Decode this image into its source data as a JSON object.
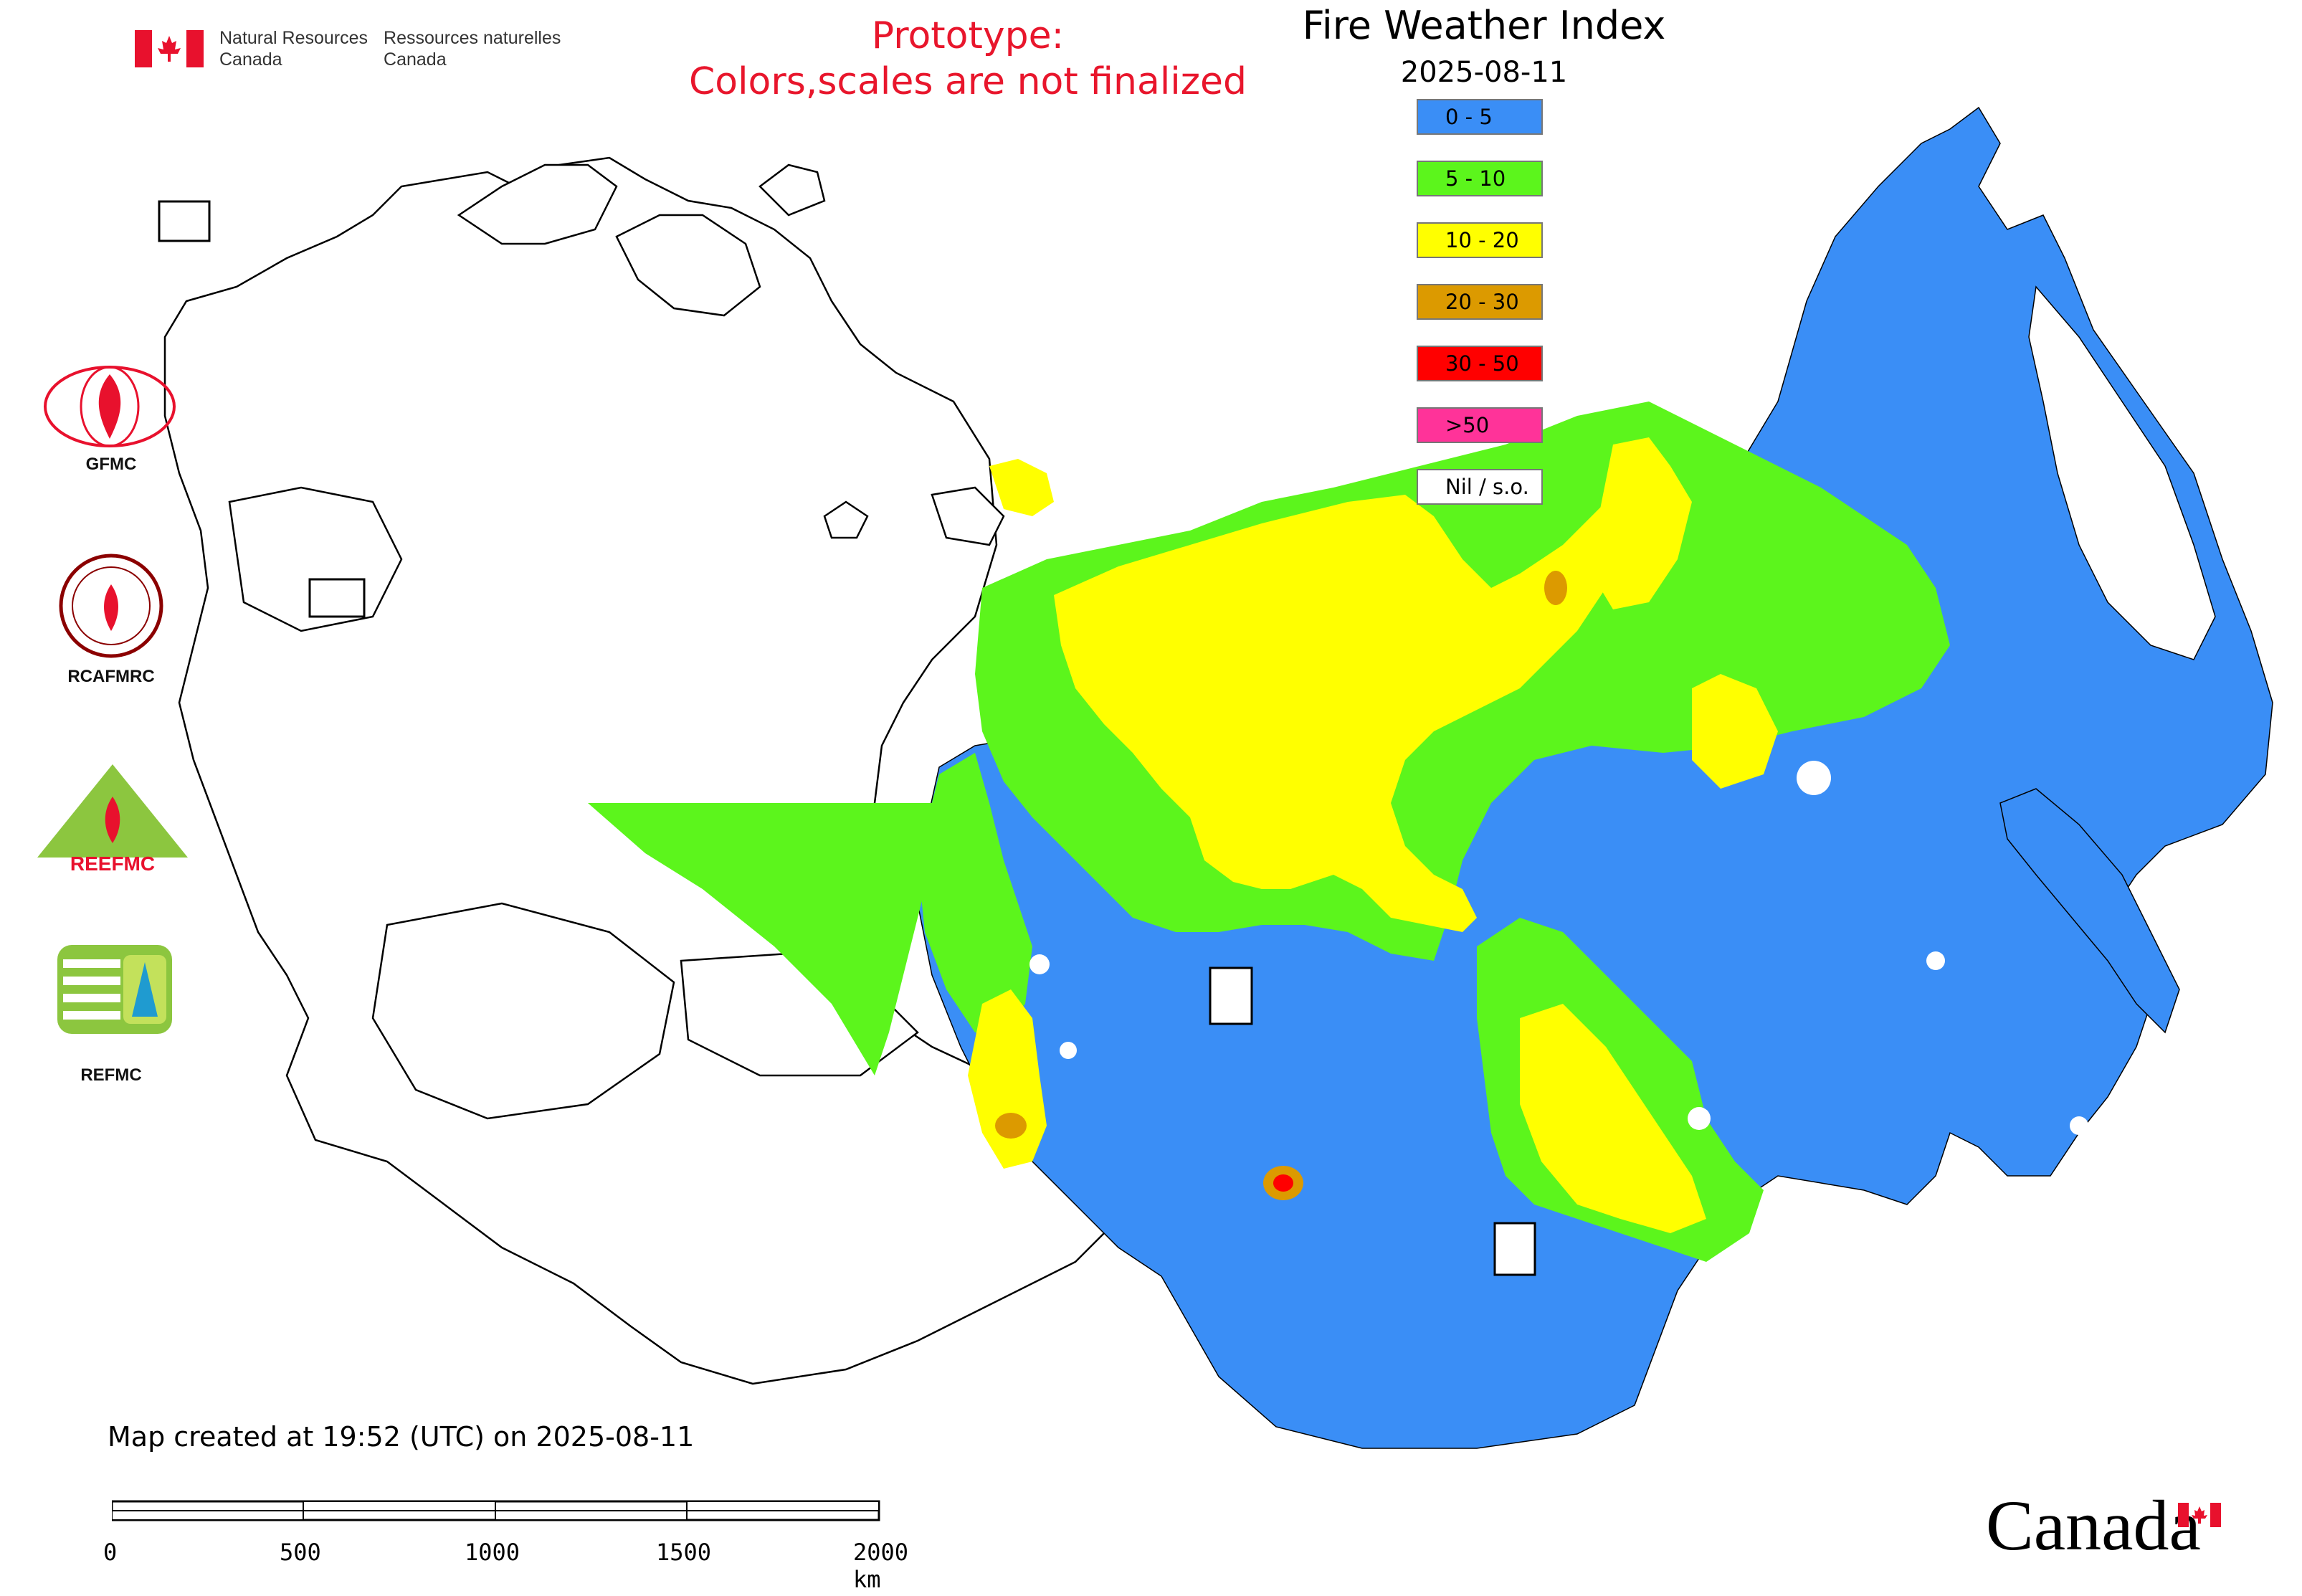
{
  "header": {
    "agency_en": [
      "Natural Resources",
      "Canada"
    ],
    "agency_fr": [
      "Ressources naturelles",
      "Canada"
    ],
    "prototype_line1": "Prototype:",
    "prototype_line2": "Colors,scales are not finalized",
    "title": "Fire Weather Index",
    "date": "2025-08-11"
  },
  "legend": [
    {
      "label": "0 - 5",
      "color": "#3a8ef6"
    },
    {
      "label": "5 - 10",
      "color": "#5cf51c"
    },
    {
      "label": "10 - 20",
      "color": "#ffff00"
    },
    {
      "label": "20 - 30",
      "color": "#dc9a00"
    },
    {
      "label": "30 - 50",
      "color": "#ff0000"
    },
    {
      "label": ">50",
      "color": "#ff3399"
    },
    {
      "label": "Nil / s.o.",
      "color": "#ffffff"
    }
  ],
  "logos": [
    {
      "name": "GFMC",
      "icon": "gfmc-logo-icon"
    },
    {
      "name": "RCAFMRC",
      "icon": "rcafmrc-logo-icon"
    },
    {
      "name": "REEFMC",
      "icon": "reefmc-logo-icon"
    },
    {
      "name": "REFMC",
      "icon": "refmc-logo-icon"
    }
  ],
  "footer": {
    "created": "Map created at 19:52 (UTC) on 2025-08-11",
    "scale_labels": [
      "0",
      "500",
      "1000",
      "1500",
      "2000 km"
    ],
    "wordmark": "Canada"
  },
  "colors": {
    "blue": "#3a8ef6",
    "green": "#5cf51c",
    "yellow": "#ffff00",
    "orange": "#dc9a00",
    "red": "#ff0000",
    "title_red": "#e8162c"
  }
}
